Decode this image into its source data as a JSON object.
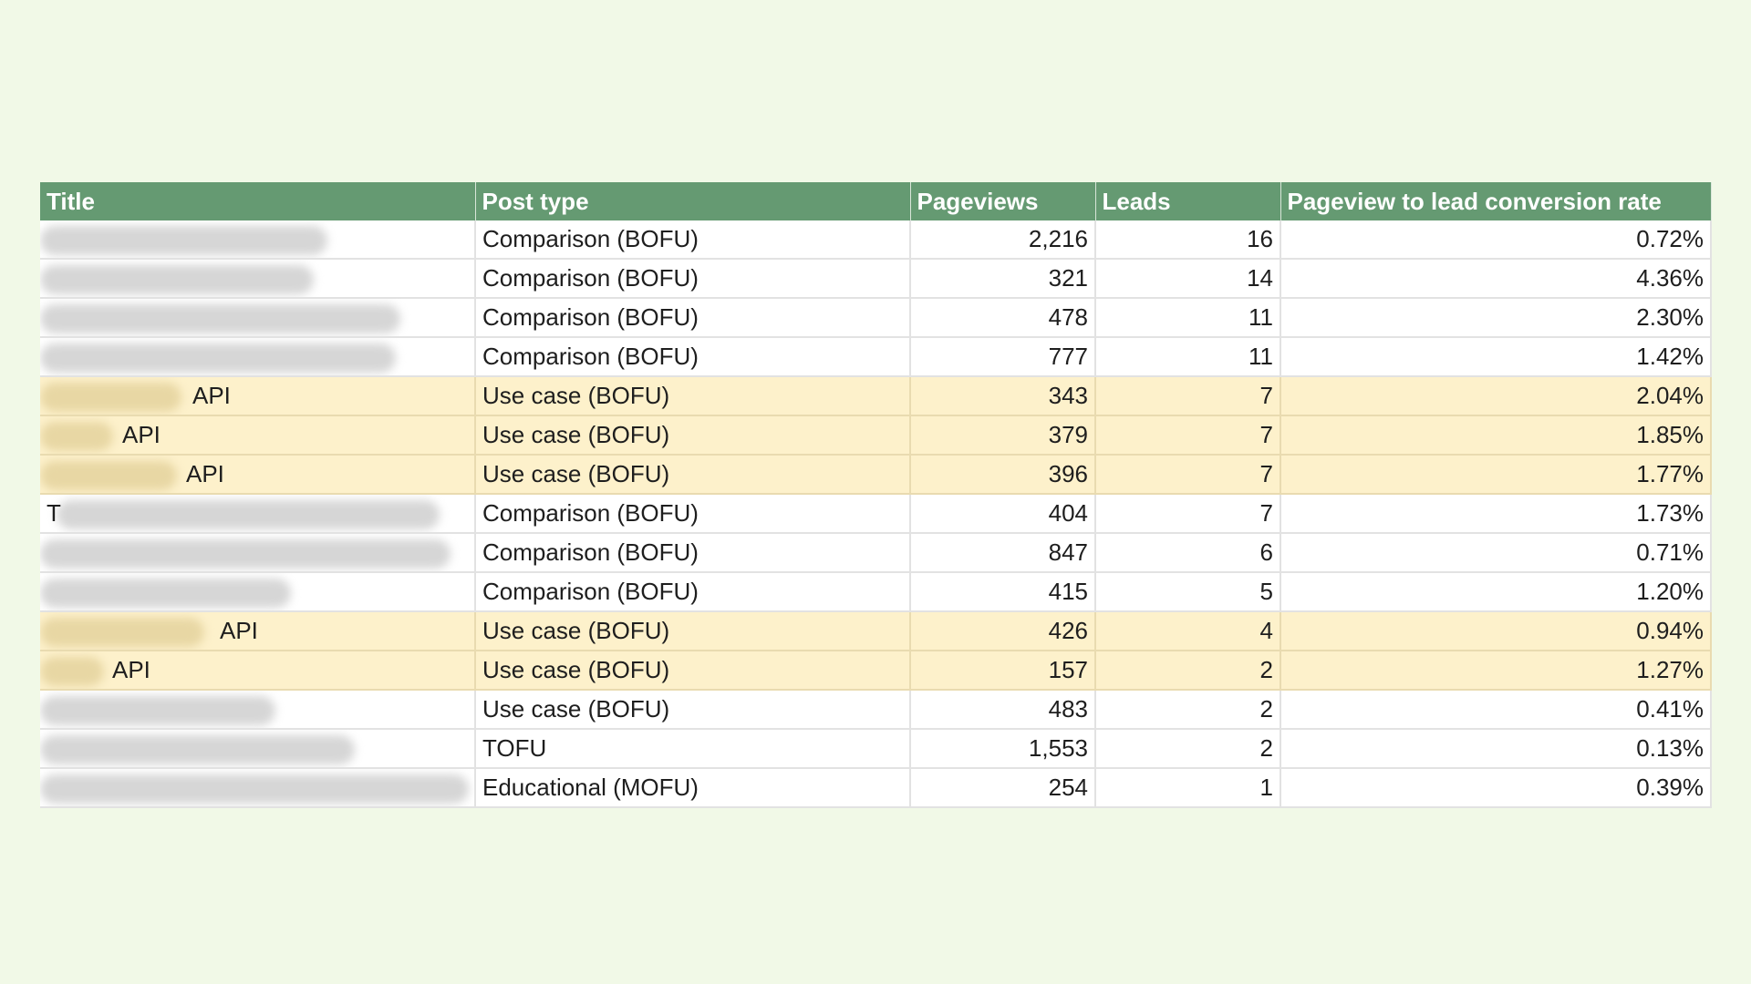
{
  "chart_data": {
    "type": "table",
    "highlight_color": "#fdf1cb",
    "header_color": "#659a72",
    "columns": [
      "Title",
      "Post type",
      "Pageviews",
      "Leads",
      "Pageview to lead conversion rate"
    ],
    "rows": [
      {
        "title": "",
        "post_type": "Comparison (BOFU)",
        "pageviews": "2,216",
        "leads": "16",
        "rate": "0.72%",
        "highlighted": false
      },
      {
        "title": "",
        "post_type": "Comparison (BOFU)",
        "pageviews": "321",
        "leads": "14",
        "rate": "4.36%",
        "highlighted": false
      },
      {
        "title": "",
        "post_type": "Comparison (BOFU)",
        "pageviews": "478",
        "leads": "11",
        "rate": "2.30%",
        "highlighted": false
      },
      {
        "title": "",
        "post_type": "Comparison (BOFU)",
        "pageviews": "777",
        "leads": "11",
        "rate": "1.42%",
        "highlighted": false
      },
      {
        "title": "API",
        "post_type": "Use case (BOFU)",
        "pageviews": "343",
        "leads": "7",
        "rate": "2.04%",
        "highlighted": true
      },
      {
        "title": "API",
        "post_type": "Use case (BOFU)",
        "pageviews": "379",
        "leads": "7",
        "rate": "1.85%",
        "highlighted": true
      },
      {
        "title": "API",
        "post_type": "Use case (BOFU)",
        "pageviews": "396",
        "leads": "7",
        "rate": "1.77%",
        "highlighted": true
      },
      {
        "title": "T",
        "post_type": "Comparison (BOFU)",
        "pageviews": "404",
        "leads": "7",
        "rate": "1.73%",
        "highlighted": false
      },
      {
        "title": "",
        "post_type": "Comparison (BOFU)",
        "pageviews": "847",
        "leads": "6",
        "rate": "0.71%",
        "highlighted": false
      },
      {
        "title": "",
        "post_type": "Comparison (BOFU)",
        "pageviews": "415",
        "leads": "5",
        "rate": "1.20%",
        "highlighted": false
      },
      {
        "title": "API",
        "post_type": "Use case (BOFU)",
        "pageviews": "426",
        "leads": "4",
        "rate": "0.94%",
        "highlighted": true
      },
      {
        "title": "API",
        "post_type": "Use case (BOFU)",
        "pageviews": "157",
        "leads": "2",
        "rate": "1.27%",
        "highlighted": true
      },
      {
        "title": "",
        "post_type": "Use case (BOFU)",
        "pageviews": "483",
        "leads": "2",
        "rate": "0.41%",
        "highlighted": false
      },
      {
        "title": "",
        "post_type": "TOFU",
        "pageviews": "1,553",
        "leads": "2",
        "rate": "0.13%",
        "highlighted": false
      },
      {
        "title": "",
        "post_type": "Educational (MOFU)",
        "pageviews": "254",
        "leads": "1",
        "rate": "0.39%",
        "highlighted": false
      }
    ]
  }
}
